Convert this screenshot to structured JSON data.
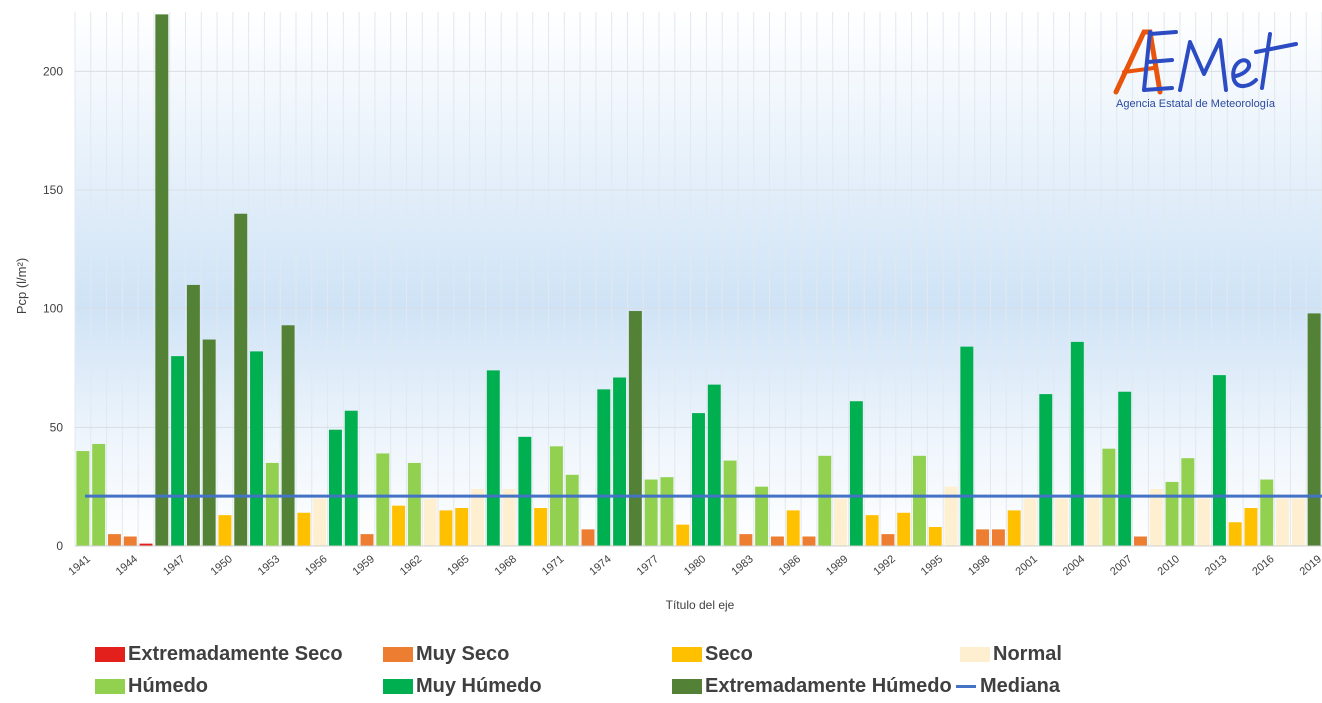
{
  "chart_data": {
    "type": "bar",
    "xlabel": "Título del eje",
    "ylabel": "Pcp (l/m²)",
    "ylim": [
      0,
      225
    ],
    "yticks": [
      0,
      50,
      100,
      150,
      200
    ],
    "x_tick_labels": [
      "1941",
      "1944",
      "1947",
      "1950",
      "1953",
      "1956",
      "1959",
      "1962",
      "1965",
      "1968",
      "1971",
      "1974",
      "1977",
      "1980",
      "1983",
      "1986",
      "1989",
      "1992",
      "1995",
      "1998",
      "2001",
      "2004",
      "2007",
      "2010",
      "2013",
      "2016",
      "2019"
    ],
    "categories": [
      "1941",
      "1942",
      "1943",
      "1944",
      "1945",
      "1946",
      "1947",
      "1948",
      "1949",
      "1950",
      "1951",
      "1952",
      "1953",
      "1954",
      "1955",
      "1956",
      "1957",
      "1958",
      "1959",
      "1960",
      "1961",
      "1962",
      "1963",
      "1964",
      "1965",
      "1966",
      "1967",
      "1968",
      "1969",
      "1970",
      "1971",
      "1972",
      "1973",
      "1974",
      "1975",
      "1976",
      "1977",
      "1978",
      "1979",
      "1980",
      "1981",
      "1982",
      "1983",
      "1984",
      "1985",
      "1986",
      "1987",
      "1988",
      "1989",
      "1990",
      "1991",
      "1992",
      "1993",
      "1994",
      "1995",
      "1996",
      "1997",
      "1998",
      "1999",
      "2000",
      "2001",
      "2002",
      "2003",
      "2004",
      "2005",
      "2006",
      "2007",
      "2008",
      "2009",
      "2010",
      "2011",
      "2012",
      "2013",
      "2014",
      "2015",
      "2016",
      "2017",
      "2018",
      "2019"
    ],
    "values": [
      40,
      43,
      5,
      4,
      1,
      224,
      80,
      110,
      87,
      13,
      140,
      82,
      35,
      93,
      14,
      20,
      49,
      57,
      5,
      39,
      17,
      35,
      20,
      15,
      16,
      24,
      74,
      24,
      46,
      16,
      42,
      30,
      7,
      66,
      71,
      99,
      28,
      29,
      9,
      56,
      68,
      36,
      5,
      25,
      4,
      15,
      4,
      38,
      20,
      61,
      13,
      5,
      14,
      38,
      8,
      25,
      84,
      7,
      7,
      15,
      20,
      64,
      20,
      86,
      20,
      41,
      65,
      4,
      24,
      27,
      37,
      20,
      72,
      10,
      16,
      28,
      20,
      20,
      98
    ],
    "classes": [
      "humedo",
      "humedo",
      "muy_seco",
      "muy_seco",
      "extremadamente_seco",
      "extremadamente_humedo",
      "muy_humedo",
      "extremadamente_humedo",
      "extremadamente_humedo",
      "seco",
      "extremadamente_humedo",
      "muy_humedo",
      "humedo",
      "extremadamente_humedo",
      "seco",
      "normal",
      "muy_humedo",
      "muy_humedo",
      "muy_seco",
      "humedo",
      "seco",
      "humedo",
      "normal",
      "seco",
      "seco",
      "normal",
      "muy_humedo",
      "normal",
      "muy_humedo",
      "seco",
      "humedo",
      "humedo",
      "muy_seco",
      "muy_humedo",
      "muy_humedo",
      "extremadamente_humedo",
      "humedo",
      "humedo",
      "seco",
      "muy_humedo",
      "muy_humedo",
      "humedo",
      "muy_seco",
      "humedo",
      "muy_seco",
      "seco",
      "muy_seco",
      "humedo",
      "normal",
      "muy_humedo",
      "seco",
      "muy_seco",
      "seco",
      "humedo",
      "seco",
      "normal",
      "muy_humedo",
      "muy_seco",
      "muy_seco",
      "seco",
      "normal",
      "muy_humedo",
      "normal",
      "muy_humedo",
      "normal",
      "humedo",
      "muy_humedo",
      "muy_seco",
      "normal",
      "humedo",
      "humedo",
      "normal",
      "muy_humedo",
      "seco",
      "seco",
      "humedo",
      "normal",
      "normal",
      "extremadamente_humedo"
    ],
    "median": 21,
    "grid": true,
    "legend_position": "bottom",
    "legend": [
      {
        "key": "extremadamente_seco",
        "label": "Extremadamente Seco",
        "color": "#e3201b",
        "kind": "bar"
      },
      {
        "key": "muy_seco",
        "label": "Muy Seco",
        "color": "#ed7d31",
        "kind": "bar"
      },
      {
        "key": "seco",
        "label": "Seco",
        "color": "#ffc000",
        "kind": "bar"
      },
      {
        "key": "normal",
        "label": "Normal",
        "color": "#fdefcf",
        "kind": "bar"
      },
      {
        "key": "humedo",
        "label": "Húmedo",
        "color": "#92d050",
        "kind": "bar"
      },
      {
        "key": "muy_humedo",
        "label": "Muy Húmedo",
        "color": "#00b050",
        "kind": "bar"
      },
      {
        "key": "extremadamente_humedo",
        "label": "Extremadamente Húmedo",
        "color": "#538135",
        "kind": "bar"
      },
      {
        "key": "mediana",
        "label": "Mediana",
        "color": "#4472c4",
        "kind": "line"
      }
    ]
  },
  "logo": {
    "text": "AEMet",
    "subtitle": "Agencia Estatal de Meteorología"
  }
}
